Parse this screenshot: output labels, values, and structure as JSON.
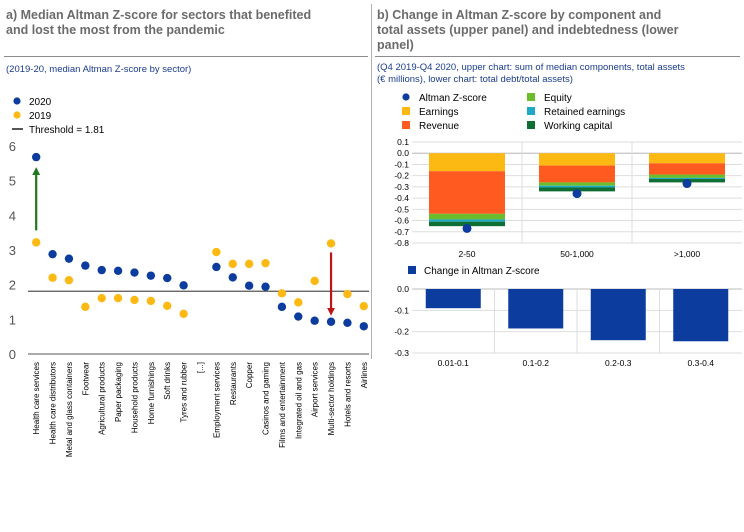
{
  "panel_a": {
    "title_line1": "a) Median Altman Z-score for sectors that benefited",
    "title_line2": "and lost the most from the pandemic",
    "subtitle": "(2019-20, median Altman Z-score by sector)"
  },
  "panel_b": {
    "title_line1": "b) Change in Altman Z-score by component and",
    "title_line2": "total assets (upper panel) and indebtedness (lower",
    "title_line3": "panel)",
    "subtitle_line1": "(Q4 2019-Q4 2020, upper chart: sum of median components, total assets",
    "subtitle_line2": "(€ millions), lower chart: total debt/total assets)"
  },
  "chart_data": [
    {
      "type": "scatter",
      "title": "",
      "legend": [
        "2020",
        "2019",
        "Threshold = 1.81"
      ],
      "colors": {
        "2020": "#0b3c9e",
        "2019": "#fdb913",
        "threshold": "#555555",
        "up_arrow": "#1e7a1e",
        "down_arrow": "#c0141b"
      },
      "threshold": 1.81,
      "ylim": [
        0,
        6
      ],
      "yticks": [
        "0",
        "1",
        "2",
        "3",
        "4",
        "5",
        "6"
      ],
      "categories": [
        "Health care services",
        "Health care distributors",
        "Metal and glass containers",
        "Footwear",
        "Agricultural products",
        "Paper packaging",
        "Household products",
        "Home furnishings",
        "Soft drinks",
        "Tyres and rubber",
        "[...]",
        "Employment services",
        "Restaurants",
        "Copper",
        "Casinos and gaming",
        "Films and entertainment",
        "Integrated oil and gas",
        "Airport services",
        "Multi-sector holdings",
        "Hotels and resorts",
        "Airlines"
      ],
      "series": [
        {
          "name": "2020",
          "values": [
            5.68,
            2.88,
            2.75,
            2.55,
            2.42,
            2.4,
            2.35,
            2.26,
            2.19,
            1.98,
            null,
            2.51,
            2.21,
            1.97,
            1.94,
            1.36,
            1.08,
            0.96,
            0.93,
            0.9,
            0.8
          ]
        },
        {
          "name": "2019",
          "values": [
            3.22,
            2.2,
            2.13,
            1.36,
            1.61,
            1.61,
            1.56,
            1.53,
            1.39,
            1.16,
            null,
            2.94,
            2.6,
            2.6,
            2.62,
            1.75,
            1.49,
            2.11,
            3.19,
            1.73,
            1.38
          ]
        }
      ]
    },
    {
      "type": "bar",
      "stacked": true,
      "title": "",
      "legend": [
        "Altman Z-score",
        "Earnings",
        "Revenue",
        "Equity",
        "Retained earnings",
        "Working capital"
      ],
      "categories": [
        "2-50",
        "50-1,000",
        ">1,000"
      ],
      "ylim": [
        -0.8,
        0.1
      ],
      "yticks": [
        "0.1",
        "0.0",
        "-0.1",
        "-0.2",
        "-0.3",
        "-0.4",
        "-0.5",
        "-0.6",
        "-0.7",
        "-0.8"
      ],
      "series": [
        {
          "name": "Earnings",
          "color": "#fdb913",
          "values": [
            -0.16,
            -0.11,
            -0.09
          ]
        },
        {
          "name": "Revenue",
          "color": "#ff5a1f",
          "values": [
            -0.38,
            -0.15,
            -0.1
          ]
        },
        {
          "name": "Equity",
          "color": "#6cbd2e",
          "values": [
            -0.05,
            -0.03,
            -0.03
          ]
        },
        {
          "name": "Retained earnings",
          "color": "#1ea9c9",
          "values": [
            -0.02,
            -0.015,
            -0.01
          ]
        },
        {
          "name": "Working capital",
          "color": "#0f6e32",
          "values": [
            -0.04,
            -0.035,
            -0.03
          ]
        }
      ],
      "altman_z": {
        "name": "Altman Z-score",
        "color": "#0b3c9e",
        "values": [
          -0.67,
          -0.36,
          -0.27
        ]
      }
    },
    {
      "type": "bar",
      "title": "",
      "legend": [
        "Change in Altman Z-score"
      ],
      "color": "#0b3c9e",
      "categories": [
        "0.01-0.1",
        "0.1-0.2",
        "0.2-0.3",
        "0.3-0.4"
      ],
      "ylim": [
        -0.3,
        0.0
      ],
      "yticks": [
        "0.0",
        "-0.1",
        "-0.2",
        "-0.3"
      ],
      "values": [
        -0.09,
        -0.185,
        -0.24,
        -0.245
      ]
    }
  ]
}
